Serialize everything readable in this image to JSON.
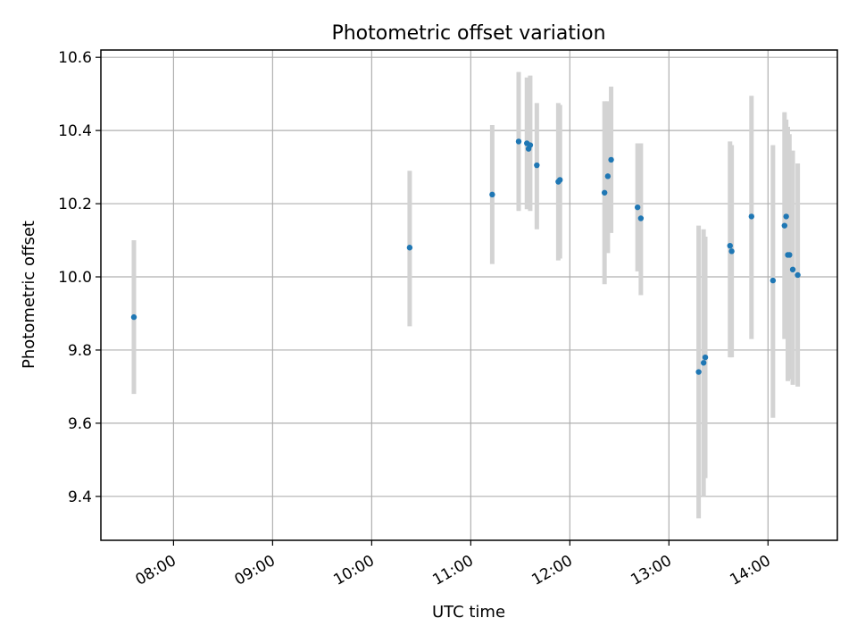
{
  "chart_data": {
    "type": "scatter",
    "title": "Photometric offset variation",
    "xlabel": "UTC time",
    "ylabel": "Photometric offset",
    "x_ticks": [
      "08:00",
      "09:00",
      "10:00",
      "11:00",
      "12:00",
      "13:00",
      "14:00"
    ],
    "y_ticks": [
      "9.4",
      "9.6",
      "9.8",
      "10.0",
      "10.2",
      "10.4",
      "10.6"
    ],
    "xlim": [
      "07:16",
      "14:42"
    ],
    "ylim": [
      9.28,
      10.62
    ],
    "grid": true,
    "marker_color": "#1f77b4",
    "errorbar_color": "#d3d3d3",
    "points": [
      {
        "t": "07:36",
        "y": 9.89,
        "lo": 9.68,
        "hi": 10.1
      },
      {
        "t": "10:23",
        "y": 10.08,
        "lo": 9.865,
        "hi": 10.29
      },
      {
        "t": "11:13",
        "y": 10.225,
        "lo": 10.035,
        "hi": 10.415
      },
      {
        "t": "11:29",
        "y": 10.37,
        "lo": 10.18,
        "hi": 10.56
      },
      {
        "t": "11:34",
        "y": 10.365,
        "lo": 10.185,
        "hi": 10.545
      },
      {
        "t": "11:35",
        "y": 10.35,
        "lo": 10.19,
        "hi": 10.54
      },
      {
        "t": "11:36",
        "y": 10.36,
        "lo": 10.18,
        "hi": 10.55
      },
      {
        "t": "11:40",
        "y": 10.305,
        "lo": 10.13,
        "hi": 10.475
      },
      {
        "t": "11:53",
        "y": 10.26,
        "lo": 10.045,
        "hi": 10.475
      },
      {
        "t": "11:54",
        "y": 10.265,
        "lo": 10.05,
        "hi": 10.47
      },
      {
        "t": "12:21",
        "y": 10.23,
        "lo": 9.98,
        "hi": 10.48
      },
      {
        "t": "12:23",
        "y": 10.275,
        "lo": 10.065,
        "hi": 10.48
      },
      {
        "t": "12:25",
        "y": 10.32,
        "lo": 10.12,
        "hi": 10.52
      },
      {
        "t": "12:41",
        "y": 10.19,
        "lo": 10.015,
        "hi": 10.365
      },
      {
        "t": "12:43",
        "y": 10.16,
        "lo": 9.95,
        "hi": 10.365
      },
      {
        "t": "13:18",
        "y": 9.74,
        "lo": 9.34,
        "hi": 10.14
      },
      {
        "t": "13:21",
        "y": 9.765,
        "lo": 9.4,
        "hi": 10.13
      },
      {
        "t": "13:22",
        "y": 9.78,
        "lo": 9.45,
        "hi": 10.11
      },
      {
        "t": "13:37",
        "y": 10.085,
        "lo": 9.78,
        "hi": 10.37
      },
      {
        "t": "13:38",
        "y": 10.07,
        "lo": 9.78,
        "hi": 10.36
      },
      {
        "t": "13:50",
        "y": 10.165,
        "lo": 9.83,
        "hi": 10.495
      },
      {
        "t": "14:03",
        "y": 9.99,
        "lo": 9.615,
        "hi": 10.36
      },
      {
        "t": "14:10",
        "y": 10.14,
        "lo": 9.83,
        "hi": 10.45
      },
      {
        "t": "14:11",
        "y": 10.165,
        "lo": 9.915,
        "hi": 10.43
      },
      {
        "t": "14:12",
        "y": 10.06,
        "lo": 9.715,
        "hi": 10.41
      },
      {
        "t": "14:13",
        "y": 10.06,
        "lo": 9.72,
        "hi": 10.39
      },
      {
        "t": "14:15",
        "y": 10.02,
        "lo": 9.705,
        "hi": 10.345
      },
      {
        "t": "14:18",
        "y": 10.005,
        "lo": 9.7,
        "hi": 10.31
      }
    ]
  }
}
